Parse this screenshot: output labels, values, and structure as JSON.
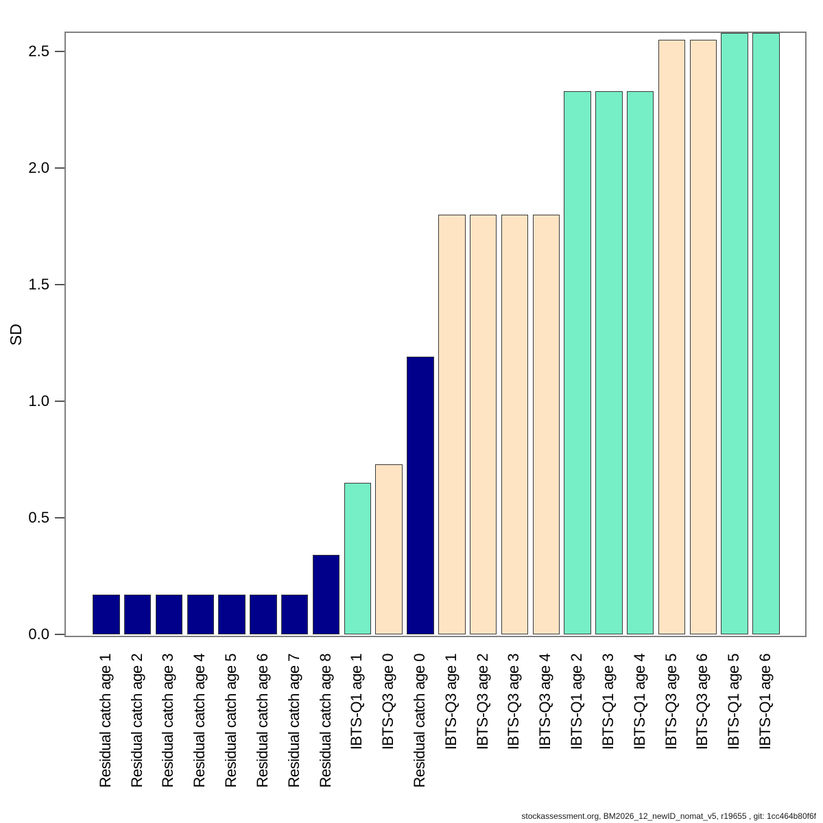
{
  "chart_data": {
    "type": "bar",
    "title": "",
    "xlabel": "",
    "ylabel": "SD",
    "ylim": [
      0,
      2.58
    ],
    "grid": false,
    "legend": false,
    "yticks": [
      "0.0",
      "0.5",
      "1.0",
      "1.5",
      "2.0",
      "2.5"
    ],
    "categories": [
      "Residual catch age 1",
      "Residual catch age 2",
      "Residual catch age 3",
      "Residual catch age 4",
      "Residual catch age 5",
      "Residual catch age 6",
      "Residual catch age 7",
      "Residual catch age 8",
      "IBTS-Q1 age 1",
      "IBTS-Q3 age 0",
      "Residual catch age 0",
      "IBTS-Q3 age 1",
      "IBTS-Q3 age 2",
      "IBTS-Q3 age 3",
      "IBTS-Q3 age 4",
      "IBTS-Q1 age 2",
      "IBTS-Q1 age 3",
      "IBTS-Q1 age 4",
      "IBTS-Q3 age 5",
      "IBTS-Q3 age 6",
      "IBTS-Q1 age 5",
      "IBTS-Q1 age 6"
    ],
    "values": [
      0.17,
      0.17,
      0.17,
      0.17,
      0.17,
      0.17,
      0.17,
      0.34,
      0.65,
      0.73,
      1.19,
      1.8,
      1.8,
      1.8,
      1.8,
      2.33,
      2.33,
      2.33,
      2.55,
      2.55,
      2.58,
      2.58
    ],
    "groups": [
      "residual_catch",
      "residual_catch",
      "residual_catch",
      "residual_catch",
      "residual_catch",
      "residual_catch",
      "residual_catch",
      "residual_catch",
      "ibts_q1",
      "ibts_q3",
      "residual_catch",
      "ibts_q3",
      "ibts_q3",
      "ibts_q3",
      "ibts_q3",
      "ibts_q1",
      "ibts_q1",
      "ibts_q1",
      "ibts_q3",
      "ibts_q3",
      "ibts_q1",
      "ibts_q1"
    ],
    "group_colors": {
      "residual_catch": "#00008B",
      "ibts_q1": "#76EEC6",
      "ibts_q3": "#FFE4C4"
    }
  },
  "footer": {
    "text": "stockassessment.org, BM2026_12_newID_nomat_v5, r19655 , git: 1cc464b80f6f"
  }
}
